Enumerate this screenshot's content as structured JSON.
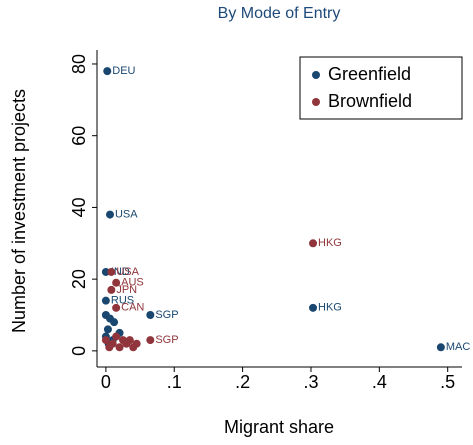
{
  "chart_data": {
    "type": "scatter",
    "title": "By Mode of Entry",
    "x_label": "Migrant share",
    "y_label": "Number of investment projects",
    "xlim": [
      -0.013,
      0.518
    ],
    "ylim": [
      -4.5,
      82.5
    ],
    "xticks": [
      0,
      {
        "value": 0.1,
        "label": ".1"
      },
      {
        "value": 0.2,
        "label": ".2"
      },
      {
        "value": 0.3,
        "label": ".3"
      },
      {
        "value": 0.4,
        "label": ".4"
      },
      {
        "value": 0.5,
        "label": ".5"
      }
    ],
    "yticks": [
      0,
      20,
      40,
      60,
      80
    ],
    "grid": false,
    "legend_position": "top-right",
    "series": [
      {
        "name": "Greenfield",
        "color": "#1a476f",
        "x": [
          0.002,
          0.006,
          0.0,
          0.0,
          0.065,
          0.303,
          0.49,
          0.0,
          0.006,
          0.012,
          0.003,
          0.02,
          0.0,
          0.01,
          0.004
        ],
        "y": [
          78,
          38,
          22,
          14,
          10,
          12,
          1,
          10,
          9,
          8,
          6,
          5,
          4,
          3,
          2
        ],
        "labels": [
          "DEU",
          "USA",
          "IND",
          "RUS",
          "SGP",
          "HKG",
          "MAC",
          null,
          null,
          null,
          null,
          null,
          null,
          null,
          null
        ]
      },
      {
        "name": "Brownfield",
        "color": "#90353b",
        "x": [
          0.303,
          0.008,
          0.015,
          0.008,
          0.015,
          0.065,
          0.0,
          0.01,
          0.02,
          0.03,
          0.04,
          0.005,
          0.025,
          0.035,
          0.015,
          0.045
        ],
        "y": [
          30,
          22,
          19,
          17,
          12,
          3,
          3,
          2,
          1,
          2,
          1,
          1,
          3,
          3,
          4,
          2
        ],
        "labels": [
          "HKG",
          "USA",
          "AUS",
          "JPN",
          "CAN",
          "SGP",
          null,
          null,
          null,
          null,
          null,
          null,
          null,
          null,
          null,
          null
        ]
      }
    ]
  }
}
